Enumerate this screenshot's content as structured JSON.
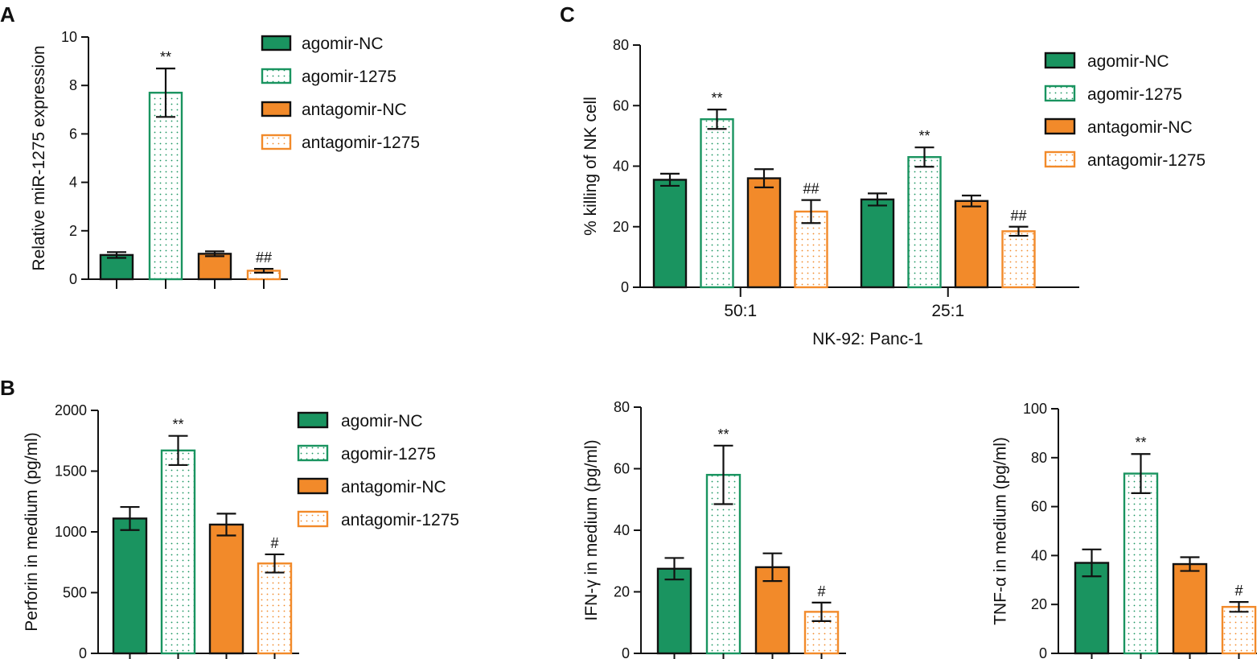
{
  "colors": {
    "agomir_nc": "#1a9460",
    "agomir_1275": "#1a9460",
    "antagomir_nc": "#f28a2a",
    "antagomir_1275": "#f28a2a",
    "axis": "#111111"
  },
  "legend": [
    {
      "label": "agomir-NC",
      "style": "solid",
      "color": "#1a9460"
    },
    {
      "label": "agomir-1275",
      "style": "dotted",
      "color": "#1a9460"
    },
    {
      "label": "antagomir-NC",
      "style": "solid",
      "color": "#f28a2a"
    },
    {
      "label": "antagomir-1275",
      "style": "dotted",
      "color": "#f28a2a"
    }
  ],
  "chart_data": [
    {
      "id": "A",
      "panel_label": "A",
      "type": "bar",
      "ylabel": "Relative miR-1275 expression",
      "xlabel": "",
      "ylim": [
        0,
        10
      ],
      "yticks": [
        0,
        2,
        4,
        6,
        8,
        10
      ],
      "categories": [
        ""
      ],
      "series": [
        {
          "name": "agomir-NC",
          "values": [
            1.0
          ],
          "errors": [
            0.12
          ],
          "sig": [
            ""
          ]
        },
        {
          "name": "agomir-1275",
          "values": [
            7.7
          ],
          "errors": [
            1.0
          ],
          "sig": [
            "**"
          ]
        },
        {
          "name": "antagomir-NC",
          "values": [
            1.05
          ],
          "errors": [
            0.1
          ],
          "sig": [
            ""
          ]
        },
        {
          "name": "antagomir-1275",
          "values": [
            0.35
          ],
          "errors": [
            0.08
          ],
          "sig": [
            "##"
          ]
        }
      ]
    },
    {
      "id": "C",
      "panel_label": "C",
      "type": "bar",
      "ylabel": "% killing of NK cell",
      "xlabel": "NK-92: Panc-1",
      "ylim": [
        0,
        80
      ],
      "yticks": [
        0,
        20,
        40,
        60,
        80
      ],
      "categories": [
        "50:1",
        "25:1"
      ],
      "series": [
        {
          "name": "agomir-NC",
          "values": [
            35.5,
            29
          ],
          "errors": [
            2,
            2
          ],
          "sig": [
            "",
            ""
          ]
        },
        {
          "name": "agomir-1275",
          "values": [
            55.5,
            43
          ],
          "errors": [
            3.2,
            3.2
          ],
          "sig": [
            "**",
            "**"
          ]
        },
        {
          "name": "antagomir-NC",
          "values": [
            36,
            28.5
          ],
          "errors": [
            3,
            1.8
          ],
          "sig": [
            "",
            ""
          ]
        },
        {
          "name": "antagomir-1275",
          "values": [
            25,
            18.5
          ],
          "errors": [
            3.8,
            1.5
          ],
          "sig": [
            "##",
            "##"
          ]
        }
      ]
    },
    {
      "id": "B-perforin",
      "panel_label": "B",
      "type": "bar",
      "ylabel": "Perforin in medium (pg/ml)",
      "xlabel": "",
      "ylim": [
        0,
        2000
      ],
      "yticks": [
        0,
        500,
        1000,
        1500,
        2000
      ],
      "categories": [
        ""
      ],
      "series": [
        {
          "name": "agomir-NC",
          "values": [
            1110
          ],
          "errors": [
            95
          ],
          "sig": [
            ""
          ]
        },
        {
          "name": "agomir-1275",
          "values": [
            1670
          ],
          "errors": [
            120
          ],
          "sig": [
            "**"
          ]
        },
        {
          "name": "antagomir-NC",
          "values": [
            1060
          ],
          "errors": [
            90
          ],
          "sig": [
            ""
          ]
        },
        {
          "name": "antagomir-1275",
          "values": [
            740
          ],
          "errors": [
            75
          ],
          "sig": [
            "#"
          ]
        }
      ]
    },
    {
      "id": "B-ifn",
      "panel_label": "",
      "type": "bar",
      "ylabel": "IFN-γ in medium (pg/ml)",
      "xlabel": "",
      "ylim": [
        0,
        80
      ],
      "yticks": [
        0,
        20,
        40,
        60,
        80
      ],
      "categories": [
        ""
      ],
      "series": [
        {
          "name": "agomir-NC",
          "values": [
            27.5
          ],
          "errors": [
            3.5
          ],
          "sig": [
            ""
          ]
        },
        {
          "name": "agomir-1275",
          "values": [
            58
          ],
          "errors": [
            9.5
          ],
          "sig": [
            "**"
          ]
        },
        {
          "name": "antagomir-NC",
          "values": [
            28
          ],
          "errors": [
            4.5
          ],
          "sig": [
            ""
          ]
        },
        {
          "name": "antagomir-1275",
          "values": [
            13.5
          ],
          "errors": [
            3
          ],
          "sig": [
            "#"
          ]
        }
      ]
    },
    {
      "id": "B-tnf",
      "panel_label": "",
      "type": "bar",
      "ylabel": "TNF-α in medium (pg/ml)",
      "xlabel": "",
      "ylim": [
        0,
        100
      ],
      "yticks": [
        0,
        20,
        40,
        60,
        80,
        100
      ],
      "categories": [
        ""
      ],
      "series": [
        {
          "name": "agomir-NC",
          "values": [
            37
          ],
          "errors": [
            5.5
          ],
          "sig": [
            ""
          ]
        },
        {
          "name": "agomir-1275",
          "values": [
            73.5
          ],
          "errors": [
            8
          ],
          "sig": [
            "**"
          ]
        },
        {
          "name": "antagomir-NC",
          "values": [
            36.5
          ],
          "errors": [
            2.8
          ],
          "sig": [
            ""
          ]
        },
        {
          "name": "antagomir-1275",
          "values": [
            19
          ],
          "errors": [
            2
          ],
          "sig": [
            "#"
          ]
        }
      ]
    }
  ]
}
